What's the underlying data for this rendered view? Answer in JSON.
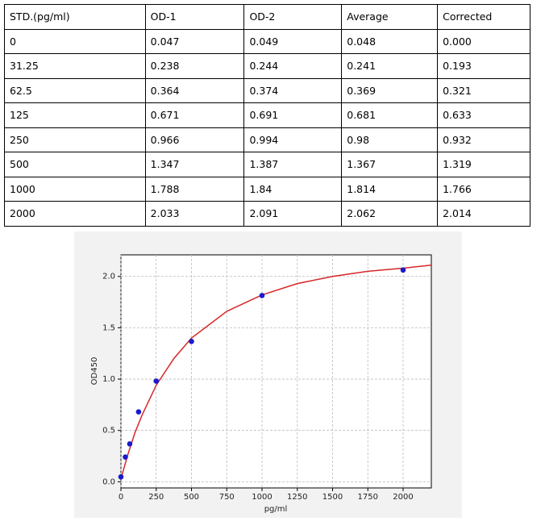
{
  "table": {
    "header": [
      "STD.(pg/ml)",
      "OD-1",
      "OD-2",
      "Average",
      "Corrected"
    ],
    "rows": [
      [
        "0",
        "0.047",
        "0.049",
        "0.048",
        "0.000"
      ],
      [
        "31.25",
        "0.238",
        "0.244",
        "0.241",
        "0.193"
      ],
      [
        "62.5",
        "0.364",
        "0.374",
        "0.369",
        "0.321"
      ],
      [
        "125",
        "0.671",
        "0.691",
        "0.681",
        "0.633"
      ],
      [
        "250",
        "0.966",
        "0.994",
        "0.98",
        "0.932"
      ],
      [
        "500",
        "1.347",
        "1.387",
        "1.367",
        "1.319"
      ],
      [
        "1000",
        "1.788",
        "1.84",
        "1.814",
        "1.766"
      ],
      [
        "2000",
        "2.033",
        "2.091",
        "2.062",
        "2.014"
      ]
    ]
  },
  "chart_data": {
    "type": "scatter",
    "x_label": "pg/ml",
    "y_label": "OD450",
    "xlim": [
      0,
      2200
    ],
    "ylim": [
      -0.06,
      2.21
    ],
    "xticks": [
      0,
      250,
      500,
      750,
      1000,
      1250,
      1500,
      1750,
      2000
    ],
    "yticks": [
      {
        "value": 0,
        "label": "0.0"
      },
      0.5,
      {
        "value": 1,
        "label": "1.0"
      },
      1.5,
      {
        "value": 2,
        "label": "2.0"
      }
    ],
    "grid": true,
    "series": [
      {
        "kind": "line",
        "color": "#d62728",
        "x": [
          0,
          50,
          100,
          150,
          250,
          375,
          500,
          750,
          1000,
          1250,
          1500,
          1750,
          2000,
          2200
        ],
        "values": [
          0.03,
          0.27,
          0.48,
          0.65,
          0.94,
          1.2,
          1.4,
          1.66,
          1.82,
          1.93,
          2.0,
          2.05,
          2.08,
          2.11
        ]
      },
      {
        "kind": "points",
        "color": "#1a1acc",
        "x": [
          0,
          31.25,
          62.5,
          125,
          250,
          500,
          1000,
          2000
        ],
        "values": [
          0.048,
          0.241,
          0.369,
          0.681,
          0.98,
          1.367,
          1.814,
          2.062
        ]
      }
    ]
  }
}
